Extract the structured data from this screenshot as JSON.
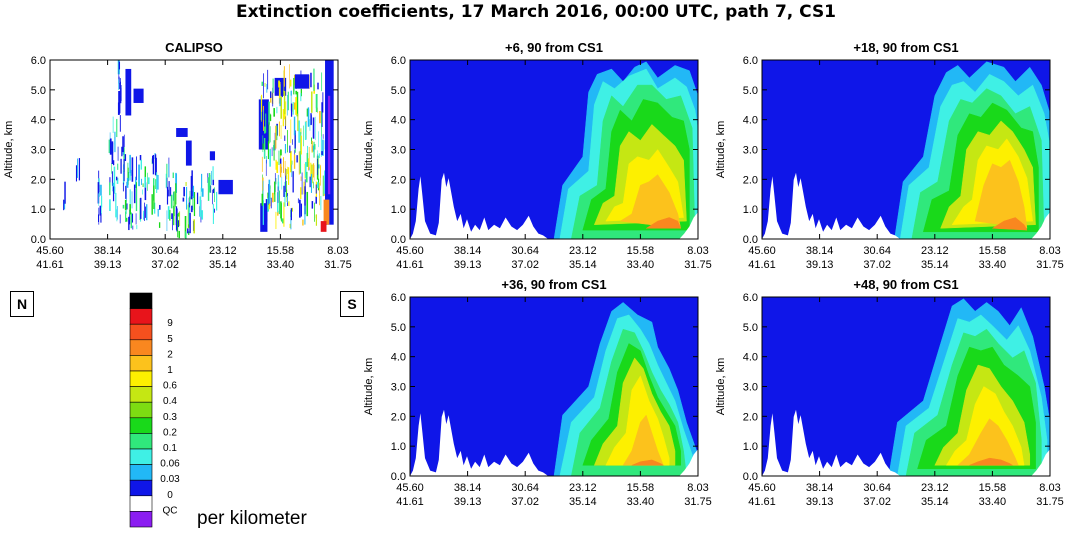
{
  "title": "Extinction coefficients, 17 March 2016, 00:00 UTC, path 7, CS1",
  "direction_left": "N",
  "direction_right": "S",
  "units": "per kilometer",
  "colors": {
    "black": "#000000",
    "red": "#e8141b",
    "orange_red": "#f5501e",
    "orange": "#f9871f",
    "yellow_orange": "#fcc21c",
    "yellow": "#fdf000",
    "lime": "#c5e713",
    "green_light": "#7ddc12",
    "green": "#19d91a",
    "green_mint": "#30e87c",
    "cyan": "#3ff0e5",
    "sky": "#22b8f6",
    "blue": "#0f16e8",
    "white": "#ffffff",
    "violet": "#8b1df1"
  },
  "chart_data": [
    {
      "type": "heatmap",
      "title": "CALIPSO",
      "ylabel": "Altitude, km",
      "ylim": [
        0,
        6
      ],
      "yticks": [
        "0.0",
        "1.0",
        "2.0",
        "3.0",
        "4.0",
        "5.0",
        "6.0"
      ],
      "xticks_lat": [
        "45.60",
        "38.14",
        "30.64",
        "23.12",
        "15.58",
        "8.03"
      ],
      "xticks_lon": [
        "41.61",
        "39.13",
        "37.02",
        "35.14",
        "33.40",
        "31.75"
      ],
      "x_label": "",
      "background": "white"
    },
    {
      "type": "heatmap",
      "title": "+6, 90 from CS1",
      "ylabel": "Altitude, km",
      "ylim": [
        0,
        6
      ],
      "yticks": [
        "0.0",
        "1.0",
        "2.0",
        "3.0",
        "4.0",
        "5.0",
        "6.0"
      ],
      "xticks_lat": [
        "45.60",
        "38.14",
        "30.64",
        "23.12",
        "15.58",
        "8.03"
      ],
      "xticks_lon": [
        "41.61",
        "39.13",
        "37.02",
        "35.14",
        "33.40",
        "31.75"
      ],
      "x_label": "",
      "background": "blue"
    },
    {
      "type": "heatmap",
      "title": "+18, 90 from CS1",
      "ylabel": "Altitude, km",
      "ylim": [
        0,
        6
      ],
      "yticks": [
        "0.0",
        "1.0",
        "2.0",
        "3.0",
        "4.0",
        "5.0",
        "6.0"
      ],
      "xticks_lat": [
        "45.60",
        "38.14",
        "30.64",
        "23.12",
        "15.58",
        "8.03"
      ],
      "xticks_lon": [
        "41.61",
        "39.13",
        "37.02",
        "35.14",
        "33.40",
        "31.75"
      ],
      "x_label": "",
      "background": "blue"
    },
    {
      "type": "heatmap",
      "title": "+36, 90 from CS1",
      "ylabel": "Altitude, km",
      "ylim": [
        0,
        6
      ],
      "yticks": [
        "0.0",
        "1.0",
        "2.0",
        "3.0",
        "4.0",
        "5.0",
        "6.0"
      ],
      "xticks_lat": [
        "45.60",
        "38.14",
        "30.64",
        "23.12",
        "15.58",
        "8.03"
      ],
      "xticks_lon": [
        "41.61",
        "39.13",
        "37.02",
        "35.14",
        "33.40",
        "31.75"
      ],
      "x_label": "",
      "background": "blue"
    },
    {
      "type": "heatmap",
      "title": "+48, 90 from CS1",
      "ylabel": "Altitude, km",
      "ylim": [
        0,
        6
      ],
      "yticks": [
        "0.0",
        "1.0",
        "2.0",
        "3.0",
        "4.0",
        "5.0",
        "6.0"
      ],
      "xticks_lat": [
        "45.60",
        "38.14",
        "30.64",
        "23.12",
        "15.58",
        "8.03"
      ],
      "xticks_lon": [
        "41.61",
        "39.13",
        "37.02",
        "35.14",
        "33.40",
        "31.75"
      ],
      "x_label": "",
      "background": "blue"
    }
  ],
  "legend": {
    "type": "colorbar",
    "entries": [
      {
        "label": "",
        "color": "#000000"
      },
      {
        "label": "9",
        "color": "#e8141b"
      },
      {
        "label": "5",
        "color": "#f5501e"
      },
      {
        "label": "2",
        "color": "#f9871f"
      },
      {
        "label": "1",
        "color": "#fcc21c"
      },
      {
        "label": "0.6",
        "color": "#fdf000"
      },
      {
        "label": "0.4",
        "color": "#c5e713"
      },
      {
        "label": "0.3",
        "color": "#7ddc12"
      },
      {
        "label": "0.2",
        "color": "#19d91a"
      },
      {
        "label": "0.1",
        "color": "#30e87c"
      },
      {
        "label": "0.06",
        "color": "#3ff0e5"
      },
      {
        "label": "0.03",
        "color": "#22b8f6"
      },
      {
        "label": "0",
        "color": "#0f16e8"
      },
      {
        "label": "QC",
        "color": "#ffffff"
      },
      {
        "label": "",
        "color": "#8b1df1"
      }
    ]
  }
}
